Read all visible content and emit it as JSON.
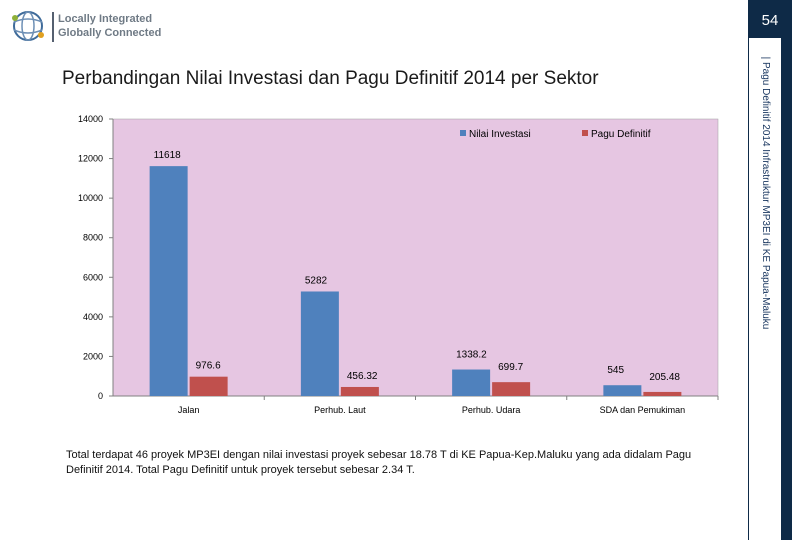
{
  "header": {
    "logo_line1": "Locally Integrated",
    "logo_line2": "Globally Connected",
    "page_number": "54",
    "side_text": "| Pagu Definitif 2014 Infrastruktur MP3EI di KE Papua-Maluku"
  },
  "slide": {
    "title": "Perbandingan Nilai Investasi dan Pagu Definitif 2014 per Sektor",
    "caption": "Total terdapat 46 proyek MP3EI dengan nilai investasi proyek sebesar 18.78 T di KE Papua-Kep.Maluku yang ada didalam Pagu Definitif 2014. Total Pagu Definitif untuk proyek tersebut sebesar 2.34 T."
  },
  "colors": {
    "plot_bg": "#e6c6e2",
    "series1": "#4f81bd",
    "series2": "#c0504d"
  },
  "chart_data": {
    "type": "bar",
    "title": "",
    "xlabel": "",
    "ylabel": "",
    "categories": [
      "Jalan",
      "Perhub. Laut",
      "Perhub. Udara",
      "SDA dan Pemukiman"
    ],
    "series": [
      {
        "name": "Nilai Investasi",
        "values": [
          11618,
          5282,
          1338.2,
          545
        ],
        "labels": [
          "11618",
          "5282",
          "1338.2",
          "545"
        ]
      },
      {
        "name": "Pagu Definitif",
        "values": [
          976.6,
          456.32,
          699.7,
          205.48
        ],
        "labels": [
          "976.6",
          "456.32",
          "699.7",
          "205.48"
        ]
      }
    ],
    "ylim": [
      0,
      14000
    ],
    "yticks": [
      0,
      2000,
      4000,
      6000,
      8000,
      10000,
      12000,
      14000
    ],
    "ytick_labels": [
      "0",
      "2000",
      "4000",
      "6000",
      "8000",
      "10000",
      "12000",
      "14000"
    ],
    "grid": false,
    "legend_position": "top-right"
  }
}
